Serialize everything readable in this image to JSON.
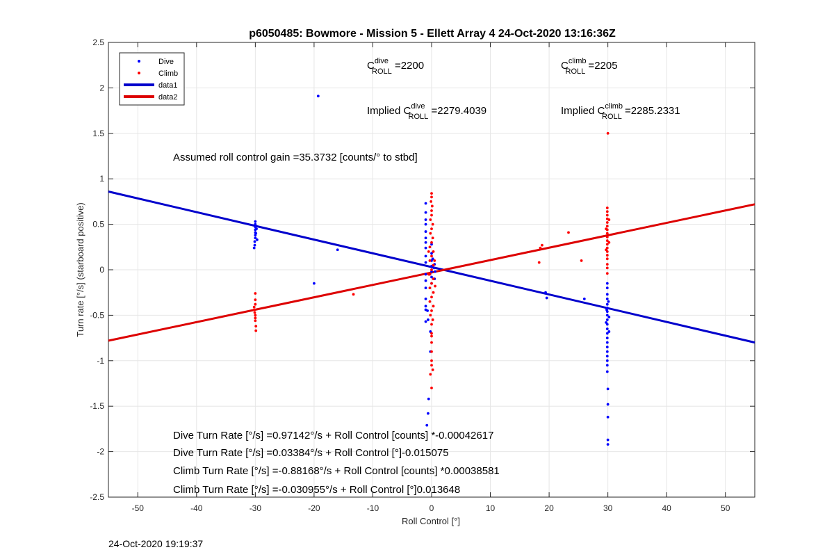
{
  "chart_data": {
    "type": "scatter",
    "title": "p6050485: Bowmore - Mission 5 - Ellett Array 4 24-Oct-2020 13:16:36Z",
    "xlabel": "Roll Control [°]",
    "ylabel": "Turn rate [°/s] (starboard positive)",
    "xlim": [
      -55,
      55
    ],
    "ylim": [
      -2.5,
      2.5
    ],
    "xticks": [
      -50,
      -40,
      -30,
      -20,
      -10,
      0,
      10,
      20,
      30,
      40,
      50
    ],
    "yticks": [
      2.5,
      2,
      1.5,
      1,
      0.5,
      0,
      -0.5,
      -1,
      -1.5,
      -2,
      -2.5
    ],
    "xtick_labels": [
      "-50",
      "-40",
      "-30",
      "-20",
      "-10",
      "0",
      "10",
      "20",
      "30",
      "40",
      "50"
    ],
    "ytick_labels": [
      "2.5",
      "2",
      "1.5",
      "1",
      "0.5",
      "0",
      "-0.5",
      "-1",
      "-1.5",
      "-2",
      "-2.5"
    ],
    "grid": true,
    "legend_position": "top-left",
    "colors": {
      "dive": "#0000ff",
      "climb": "#ff0000",
      "dive_line": "#0000cc",
      "climb_line": "#dd0000"
    },
    "series": [
      {
        "name": "Dive",
        "kind": "points",
        "points": [
          [
            -30,
            0.53
          ],
          [
            -30,
            0.5
          ],
          [
            -30,
            0.47
          ],
          [
            -30,
            0.44
          ],
          [
            -30,
            0.41
          ],
          [
            -30,
            0.38
          ],
          [
            -30,
            0.35
          ],
          [
            -30.1,
            0.31
          ],
          [
            -30.1,
            0.27
          ],
          [
            -30.2,
            0.24
          ],
          [
            -29.8,
            0.45
          ],
          [
            -29.9,
            0.4
          ],
          [
            -29.7,
            0.33
          ],
          [
            -19.3,
            1.91
          ],
          [
            -16,
            0.22
          ],
          [
            -20,
            -0.15
          ],
          [
            -1,
            0.73
          ],
          [
            -1,
            0.63
          ],
          [
            -1,
            0.55
          ],
          [
            -1,
            0.5
          ],
          [
            -1,
            0.42
          ],
          [
            -1,
            0.35
          ],
          [
            -1,
            0.3
          ],
          [
            -1,
            0.24
          ],
          [
            -1,
            0.15
          ],
          [
            -1,
            0.08
          ],
          [
            -1,
            -0.05
          ],
          [
            -1,
            -0.12
          ],
          [
            -1,
            -0.2
          ],
          [
            -1,
            -0.32
          ],
          [
            -1,
            -0.4
          ],
          [
            -1,
            -0.57
          ],
          [
            -1,
            -0.44
          ],
          [
            0,
            0.28
          ],
          [
            0,
            0.18
          ],
          [
            0,
            0.1
          ],
          [
            0,
            0.04
          ],
          [
            0,
            -0.02
          ],
          [
            0,
            -0.08
          ],
          [
            0,
            -0.15
          ],
          [
            0.2,
            0.12
          ],
          [
            -0.3,
            -0.05
          ],
          [
            0.5,
            0.06
          ],
          [
            0.6,
            -0.02
          ],
          [
            0.5,
            -0.1
          ],
          [
            0.4,
            0.02
          ],
          [
            -0.6,
            -0.55
          ],
          [
            -0.7,
            -0.45
          ],
          [
            -0.2,
            -0.68
          ],
          [
            -0.2,
            -0.9
          ],
          [
            -0.5,
            -1.42
          ],
          [
            -0.6,
            -1.58
          ],
          [
            -0.8,
            -1.71
          ],
          [
            19.4,
            -0.25
          ],
          [
            19.6,
            -0.31
          ],
          [
            26,
            -0.32
          ],
          [
            29.9,
            -0.15
          ],
          [
            29.9,
            -0.2
          ],
          [
            29.9,
            -0.27
          ],
          [
            29.9,
            -0.32
          ],
          [
            29.9,
            -0.38
          ],
          [
            29.9,
            -0.42
          ],
          [
            29.9,
            -0.46
          ],
          [
            29.9,
            -0.5
          ],
          [
            29.9,
            -0.55
          ],
          [
            29.9,
            -0.6
          ],
          [
            29.9,
            -0.65
          ],
          [
            29.9,
            -0.7
          ],
          [
            29.9,
            -0.75
          ],
          [
            29.9,
            -0.8
          ],
          [
            29.9,
            -0.85
          ],
          [
            29.9,
            -0.9
          ],
          [
            29.9,
            -0.95
          ],
          [
            29.9,
            -1.0
          ],
          [
            29.9,
            -1.05
          ],
          [
            29.9,
            -1.12
          ],
          [
            30,
            -1.31
          ],
          [
            30,
            -1.48
          ],
          [
            30,
            -1.62
          ],
          [
            30,
            -1.87
          ],
          [
            30,
            -1.92
          ],
          [
            30.1,
            -0.35
          ],
          [
            29.8,
            -0.44
          ],
          [
            30.2,
            -0.52
          ],
          [
            29.7,
            -0.58
          ],
          [
            30.2,
            -0.68
          ]
        ]
      },
      {
        "name": "Climb",
        "kind": "points",
        "points": [
          [
            -30,
            -0.26
          ],
          [
            -30,
            -0.33
          ],
          [
            -30,
            -0.38
          ],
          [
            -30.2,
            -0.41
          ],
          [
            -30.2,
            -0.44
          ],
          [
            -30.1,
            -0.47
          ],
          [
            -30,
            -0.5
          ],
          [
            -30,
            -0.53
          ],
          [
            -30,
            -0.56
          ],
          [
            -29.9,
            -0.62
          ],
          [
            -29.9,
            -0.67
          ],
          [
            -13.3,
            -0.27
          ],
          [
            0,
            0.84
          ],
          [
            0,
            0.8
          ],
          [
            -0.1,
            0.75
          ],
          [
            0.1,
            0.7
          ],
          [
            0,
            0.65
          ],
          [
            0,
            0.6
          ],
          [
            -0.2,
            0.55
          ],
          [
            0.2,
            0.5
          ],
          [
            0,
            0.45
          ],
          [
            -0.2,
            0.4
          ],
          [
            0.2,
            0.35
          ],
          [
            0,
            0.3
          ],
          [
            -0.3,
            0.25
          ],
          [
            0.3,
            0.2
          ],
          [
            0,
            0.15
          ],
          [
            -0.3,
            0.1
          ],
          [
            0.3,
            0.05
          ],
          [
            0,
            0
          ],
          [
            -0.3,
            -0.05
          ],
          [
            0.3,
            -0.1
          ],
          [
            0,
            -0.15
          ],
          [
            -0.3,
            -0.2
          ],
          [
            0.3,
            -0.25
          ],
          [
            0,
            -0.3
          ],
          [
            -0.3,
            -0.35
          ],
          [
            0.3,
            -0.4
          ],
          [
            0,
            -0.45
          ],
          [
            -0.2,
            -0.5
          ],
          [
            0.2,
            -0.55
          ],
          [
            0,
            -0.6
          ],
          [
            0,
            -0.7
          ],
          [
            0,
            -0.8
          ],
          [
            0,
            -0.9
          ],
          [
            0,
            -1.0
          ],
          [
            0,
            -1.05
          ],
          [
            0.2,
            -1.1
          ],
          [
            -0.2,
            -1.15
          ],
          [
            0,
            -1.3
          ],
          [
            0,
            -0.73
          ],
          [
            0.5,
            0.1
          ],
          [
            -0.5,
            -0.05
          ],
          [
            0.6,
            -0.18
          ],
          [
            -0.5,
            0.2
          ],
          [
            18.5,
            0.24
          ],
          [
            18.8,
            0.27
          ],
          [
            18.3,
            0.08
          ],
          [
            23.3,
            0.41
          ],
          [
            25.5,
            0.1
          ],
          [
            29.9,
            0.68
          ],
          [
            29.9,
            0.64
          ],
          [
            29.9,
            0.6
          ],
          [
            29.9,
            0.56
          ],
          [
            29.9,
            0.52
          ],
          [
            29.9,
            0.48
          ],
          [
            29.9,
            0.44
          ],
          [
            29.9,
            0.4
          ],
          [
            29.9,
            0.36
          ],
          [
            29.9,
            0.32
          ],
          [
            29.9,
            0.28
          ],
          [
            29.9,
            0.24
          ],
          [
            29.9,
            0.2
          ],
          [
            29.9,
            0.16
          ],
          [
            29.9,
            0.12
          ],
          [
            29.9,
            0.06
          ],
          [
            29.9,
            0.02
          ],
          [
            29.9,
            -0.04
          ],
          [
            30,
            1.5
          ],
          [
            30.2,
            0.55
          ],
          [
            29.7,
            0.45
          ],
          [
            30.2,
            0.3
          ],
          [
            29.7,
            0.22
          ]
        ]
      },
      {
        "name": "data1",
        "kind": "line",
        "x": [
          -55,
          55
        ],
        "y": [
          0.86,
          -0.8
        ]
      },
      {
        "name": "data2",
        "kind": "line",
        "x": [
          -55,
          55
        ],
        "y": [
          -0.78,
          0.72
        ]
      }
    ],
    "annotations": {
      "c_dive": {
        "base": "C",
        "sup": "dive",
        "sub": "ROLL",
        "value": " =2200"
      },
      "c_climb": {
        "base": "C",
        "sup": "climb",
        "sub": "ROLL",
        "value": " =2205"
      },
      "implied_dive": {
        "prefix": "Implied C",
        "sup": "dive",
        "sub": "ROLL",
        "value": " =2279.4039"
      },
      "implied_climb": {
        "prefix": "Implied C",
        "sup": "climb",
        "sub": "ROLL",
        "value": " =2285.2331"
      },
      "gain": "Assumed roll control gain =35.3732 [counts/° to stbd]",
      "fit_lines": [
        "Dive Turn Rate [°/s] =0.97142°/s + Roll Control [counts] *-0.00042617",
        "Dive Turn Rate [°/s] =0.03384°/s + Roll Control [°]-0.015075",
        "Climb Turn Rate [°/s] =-0.88168°/s + Roll Control [counts] *0.00038581",
        "Climb Turn Rate [°/s] =-0.030955°/s + Roll Control [°]0.013648"
      ]
    },
    "legend": [
      "Dive",
      "Climb",
      "data1",
      "data2"
    ]
  },
  "footer": {
    "timestamp": "24-Oct-2020 19:19:37"
  }
}
